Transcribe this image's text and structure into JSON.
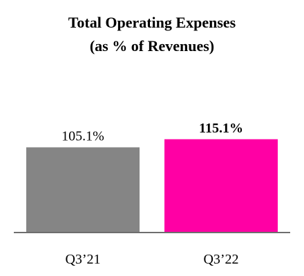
{
  "chart_data": {
    "type": "bar",
    "title": "Total Operating Expenses",
    "subtitle": "(as % of Revenues)",
    "categories": [
      "Q3’21",
      "Q3’22"
    ],
    "values": [
      105.1,
      115.1
    ],
    "value_labels": [
      "105.1%",
      "115.1%"
    ],
    "value_label_bold": [
      false,
      true
    ],
    "bar_colors": [
      "#858585",
      "#ff00a4"
    ],
    "axis_color": "#6e6e6e",
    "xlabel": "",
    "ylabel": "",
    "ylim": [
      0,
      130
    ],
    "grid": false,
    "legend": "none"
  }
}
